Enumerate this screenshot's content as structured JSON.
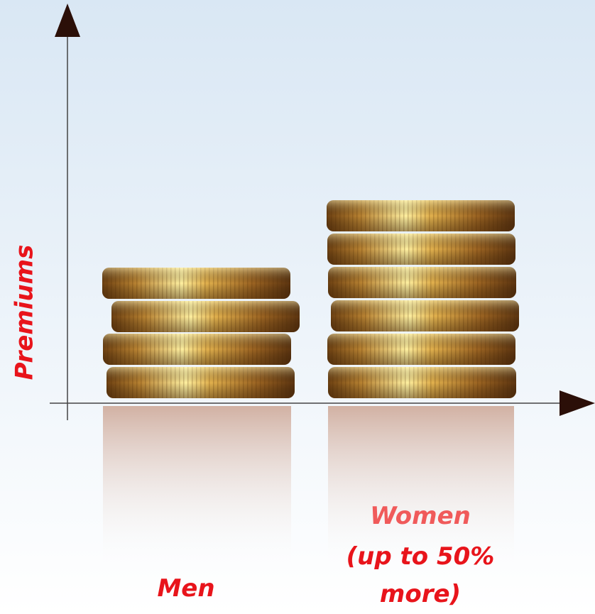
{
  "axis_label": "Premiums",
  "groups": [
    {
      "label": [
        "Men"
      ]
    },
    {
      "label": [
        "Women",
        "(up to 50%",
        "more)"
      ]
    }
  ]
}
